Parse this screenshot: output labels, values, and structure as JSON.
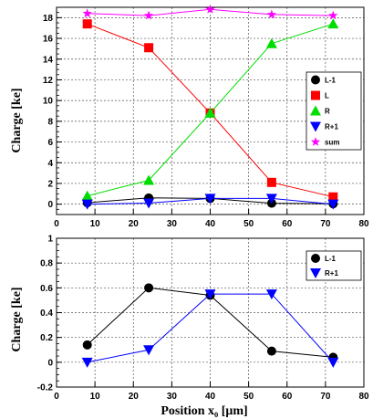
{
  "colors": {
    "L-1": "#000000",
    "L": "#ff0000",
    "R": "#00dd00",
    "R+1": "#0000ff",
    "sum": "#ff00ff"
  },
  "chart_data": [
    {
      "type": "line",
      "title": "",
      "xlabel": "",
      "ylabel": "Charge [ke]",
      "xlim": [
        0,
        80
      ],
      "ylim": [
        -1,
        19
      ],
      "xticks": [
        0,
        10,
        20,
        30,
        40,
        50,
        60,
        70,
        80
      ],
      "yticks": [
        0,
        2,
        4,
        6,
        8,
        10,
        12,
        14,
        16,
        18
      ],
      "grid": true,
      "legend_position": "right-middle",
      "x": [
        8,
        24,
        40,
        56,
        72
      ],
      "series": [
        {
          "name": "L-1",
          "marker": "circle",
          "color": "#000000",
          "values": [
            0.14,
            0.6,
            0.55,
            0.09,
            0.04
          ]
        },
        {
          "name": "L",
          "marker": "square",
          "color": "#ff0000",
          "values": [
            17.4,
            15.1,
            8.8,
            2.1,
            0.7
          ]
        },
        {
          "name": "R",
          "marker": "triangle-up",
          "color": "#00dd00",
          "values": [
            0.8,
            2.3,
            8.8,
            15.5,
            17.4
          ]
        },
        {
          "name": "R+1",
          "marker": "triangle-down",
          "color": "#0000ff",
          "values": [
            0.0,
            0.1,
            0.55,
            0.55,
            0.0
          ]
        },
        {
          "name": "sum",
          "marker": "star",
          "color": "#ff00ff",
          "values": [
            18.4,
            18.2,
            18.8,
            18.3,
            18.2
          ]
        }
      ]
    },
    {
      "type": "line",
      "title": "",
      "xlabel": "Position x₀ [μm]",
      "ylabel": "Charge [ke]",
      "xlim": [
        0,
        80
      ],
      "ylim": [
        -0.2,
        1
      ],
      "xticks": [
        0,
        10,
        20,
        30,
        40,
        50,
        60,
        70,
        80
      ],
      "yticks": [
        -0.2,
        0,
        0.2,
        0.4,
        0.6,
        0.8,
        1
      ],
      "ytick_labels": [
        "-0.2",
        "0",
        "0.2",
        "0.4",
        "0.6",
        "0.8",
        "1"
      ],
      "grid": true,
      "legend_position": "top-right",
      "x": [
        8,
        24,
        40,
        56,
        72
      ],
      "series": [
        {
          "name": "L-1",
          "marker": "circle",
          "color": "#000000",
          "values": [
            0.14,
            0.6,
            0.54,
            0.09,
            0.04
          ]
        },
        {
          "name": "R+1",
          "marker": "triangle-down",
          "color": "#0000ff",
          "values": [
            0.0,
            0.1,
            0.55,
            0.55,
            0.0
          ]
        }
      ]
    }
  ]
}
